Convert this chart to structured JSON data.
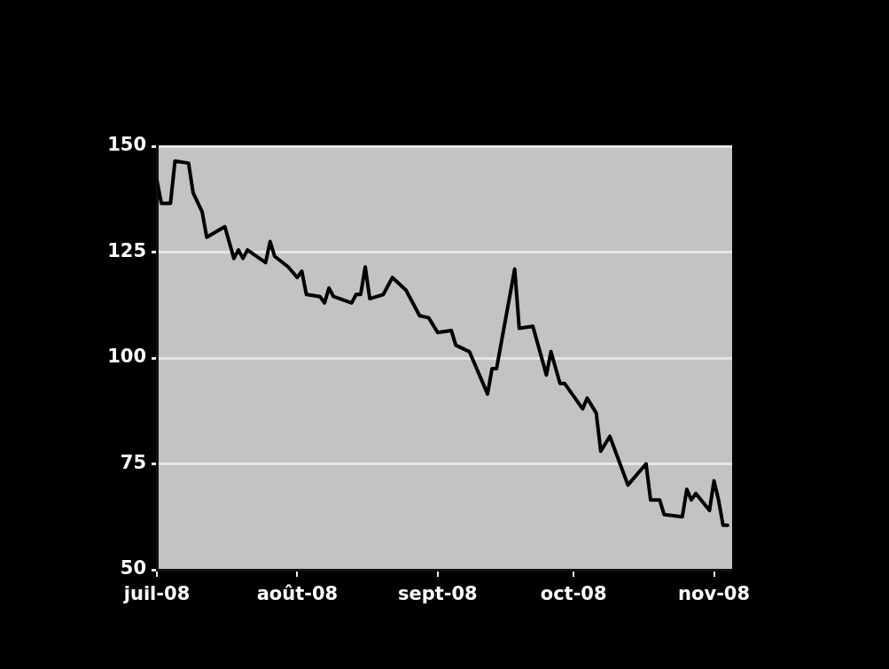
{
  "chart_data": {
    "type": "line",
    "x": [
      "2008-07-01",
      "2008-07-02",
      "2008-07-04",
      "2008-07-05",
      "2008-07-08",
      "2008-07-09",
      "2008-07-11",
      "2008-07-12",
      "2008-07-16",
      "2008-07-18",
      "2008-07-19",
      "2008-07-20",
      "2008-07-21",
      "2008-07-25",
      "2008-07-26",
      "2008-07-27",
      "2008-07-30",
      "2008-08-01",
      "2008-08-02",
      "2008-08-03",
      "2008-08-06",
      "2008-08-07",
      "2008-08-08",
      "2008-08-09",
      "2008-08-13",
      "2008-08-14",
      "2008-08-15",
      "2008-08-16",
      "2008-08-17",
      "2008-08-20",
      "2008-08-22",
      "2008-08-24",
      "2008-08-25",
      "2008-08-28",
      "2008-08-30",
      "2008-09-01",
      "2008-09-04",
      "2008-09-05",
      "2008-09-08",
      "2008-09-12",
      "2008-09-13",
      "2008-09-14",
      "2008-09-18",
      "2008-09-19",
      "2008-09-22",
      "2008-09-25",
      "2008-09-26",
      "2008-09-28",
      "2008-09-29",
      "2008-10-03",
      "2008-10-04",
      "2008-10-06",
      "2008-10-07",
      "2008-10-09",
      "2008-10-13",
      "2008-10-17",
      "2008-10-18",
      "2008-10-20",
      "2008-10-21",
      "2008-10-25",
      "2008-10-26",
      "2008-10-27",
      "2008-10-28",
      "2008-10-31",
      "2008-11-01",
      "2008-11-02",
      "2008-11-03",
      "2008-11-04"
    ],
    "series": [
      {
        "color": "#000000",
        "values": [
          142,
          136.5,
          136.5,
          146.5,
          146,
          139,
          134.5,
          128.5,
          131,
          123.5,
          125.5,
          123.5,
          125.5,
          122.5,
          127.5,
          124,
          121.5,
          119,
          120.5,
          115,
          114.5,
          113,
          116.5,
          114.5,
          113,
          115,
          115,
          121.5,
          114,
          115,
          119,
          117,
          116,
          110,
          109.5,
          106,
          106.5,
          103,
          101.5,
          91.5,
          97.5,
          97.5,
          121,
          107,
          107.5,
          96,
          101.5,
          94,
          94,
          88,
          90.5,
          87,
          78,
          81.5,
          70,
          75,
          66.5,
          66.5,
          63,
          62.5,
          69,
          66.5,
          68,
          64,
          71,
          66.5,
          60.5,
          60.5
        ]
      }
    ],
    "xlim": [
      "2008-07-01",
      "2008-11-05"
    ],
    "xticks": [
      {
        "value": "2008-07-01",
        "label": "juil-08"
      },
      {
        "value": "2008-08-01",
        "label": "août-08"
      },
      {
        "value": "2008-09-01",
        "label": "sept-08"
      },
      {
        "value": "2008-10-01",
        "label": "oct-08"
      },
      {
        "value": "2008-11-01",
        "label": "nov-08"
      }
    ],
    "ylim": [
      50,
      150
    ],
    "yticks": [
      50,
      75,
      100,
      125,
      150
    ],
    "grid": "y",
    "legend": false,
    "marker": "none",
    "line_style": "solid"
  }
}
